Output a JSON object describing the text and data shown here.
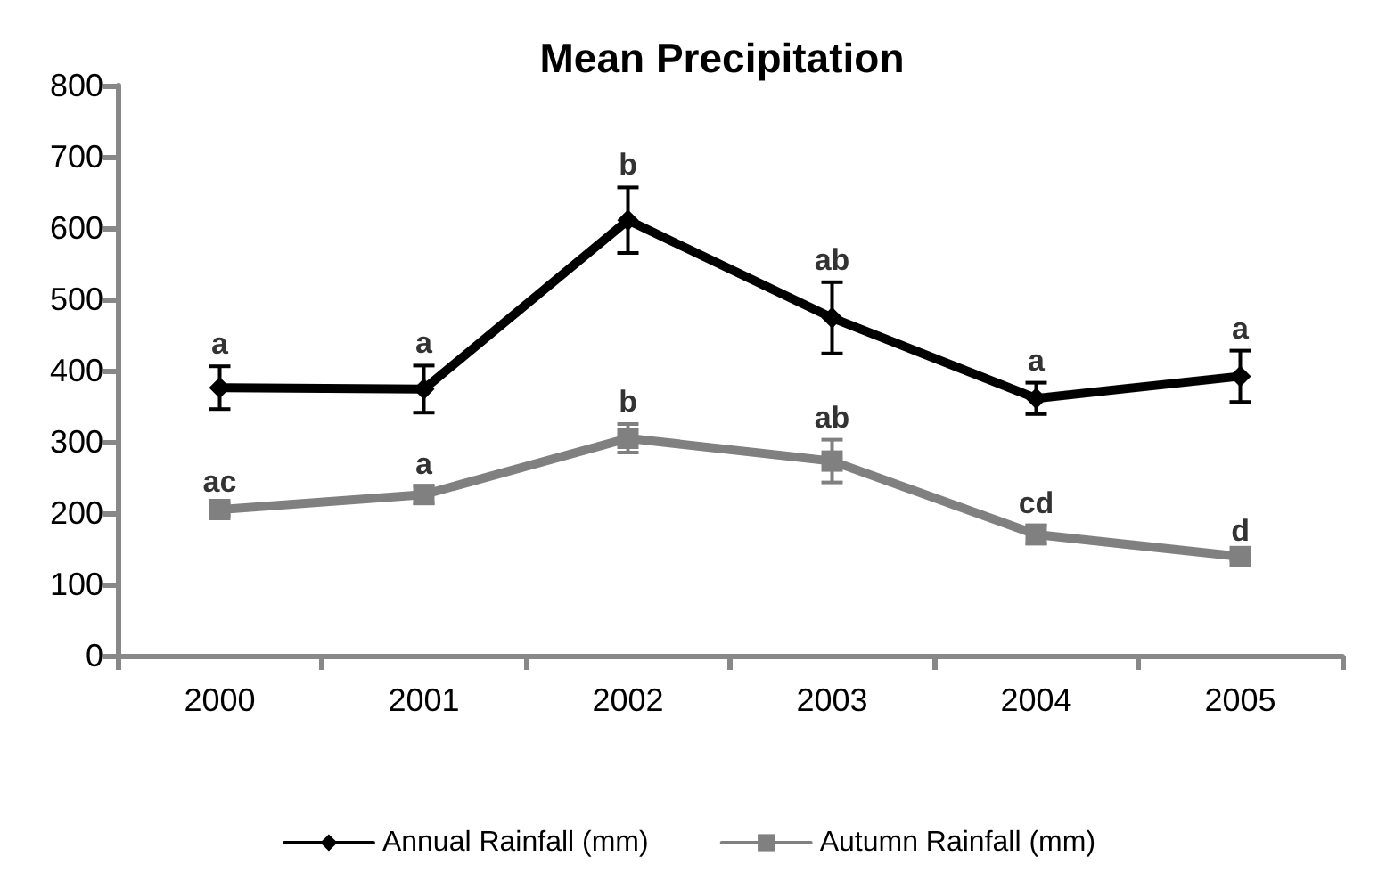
{
  "chart_data": {
    "type": "line",
    "title": "Mean Precipitation",
    "categories": [
      "2000",
      "2001",
      "2002",
      "2003",
      "2004",
      "2005"
    ],
    "series": [
      {
        "name": "Annual Rainfall (mm)",
        "color": "#000000",
        "marker": "diamond",
        "values": [
          376,
          374,
          611,
          474,
          361,
          392
        ],
        "errors": [
          30,
          33,
          46,
          50,
          22,
          36
        ]
      },
      {
        "name": "Autumn Rainfall (mm)",
        "color": "#808080",
        "marker": "square",
        "values": [
          205,
          226,
          305,
          273,
          170,
          139
        ],
        "errors": [
          8,
          12,
          20,
          30,
          13,
          5
        ]
      }
    ],
    "annotations": [
      {
        "text": "a",
        "x": "2000",
        "y": 376
      },
      {
        "text": "a",
        "x": "2001",
        "y": 374
      },
      {
        "text": "b",
        "x": "2002",
        "y": 611
      },
      {
        "text": "ab",
        "x": "2003",
        "y": 474
      },
      {
        "text": "a",
        "x": "2004",
        "y": 361
      },
      {
        "text": "a",
        "x": "2005",
        "y": 392
      },
      {
        "text": "ac",
        "x": "2000",
        "y": 205
      },
      {
        "text": "a",
        "x": "2001",
        "y": 226
      },
      {
        "text": "b",
        "x": "2002",
        "y": 305
      },
      {
        "text": "ab",
        "x": "2003",
        "y": 273
      },
      {
        "text": "cd",
        "x": "2004",
        "y": 170
      },
      {
        "text": "d",
        "x": "2005",
        "y": 139
      }
    ],
    "ylim": [
      0,
      800
    ],
    "yticks": [
      0,
      100,
      200,
      300,
      400,
      500,
      600,
      700,
      800
    ],
    "grid": false,
    "legend": "bottom",
    "line_style": "solid"
  }
}
